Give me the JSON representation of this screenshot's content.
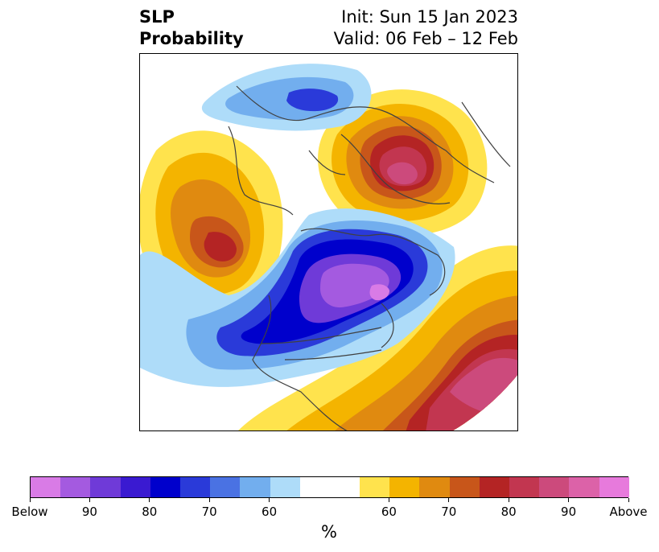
{
  "title": {
    "left_line1": "SLP",
    "left_line2": "Probability",
    "right_line1": "Init: Sun 15 Jan 2023",
    "right_line2": "Valid: 06 Feb – 12 Feb"
  },
  "colorbar": {
    "unit": "%",
    "segments": [
      "#d97be6",
      "#a45ae0",
      "#6f3ad8",
      "#3a1ad1",
      "#0000cc",
      "#2a3ad9",
      "#4a72e3",
      "#72aeee",
      "#aedcf9",
      "#ffffff",
      "#ffffff",
      "#ffe34d",
      "#f4b400",
      "#e08a10",
      "#c8561a",
      "#b42424",
      "#c23650",
      "#cc4a7c",
      "#dc62a8",
      "#e77adc"
    ],
    "ticks": [
      {
        "label": "Below",
        "index": 0
      },
      {
        "label": "90",
        "index": 2
      },
      {
        "label": "80",
        "index": 4
      },
      {
        "label": "70",
        "index": 6
      },
      {
        "label": "60",
        "index": 8
      },
      {
        "label": "60",
        "index": 12
      },
      {
        "label": "70",
        "index": 14
      },
      {
        "label": "80",
        "index": 16
      },
      {
        "label": "90",
        "index": 18
      },
      {
        "label": "Above",
        "index": 20
      }
    ]
  },
  "map_colors": {
    "below_light": "#aedcf9",
    "below_mid": "#72aeee",
    "below_blue": "#2a3ad9",
    "below_deep": "#0000cc",
    "below_purple": "#6f3ad8",
    "below_violet": "#a45ae0",
    "below_pink": "#d97be6",
    "above_yellow": "#ffe34d",
    "above_gold": "#f4b400",
    "above_orange": "#e08a10",
    "above_burnt": "#c8561a",
    "above_red": "#b42424",
    "above_crimson": "#c23650",
    "above_magenta": "#cc4a7c",
    "coastline": "#404040"
  }
}
